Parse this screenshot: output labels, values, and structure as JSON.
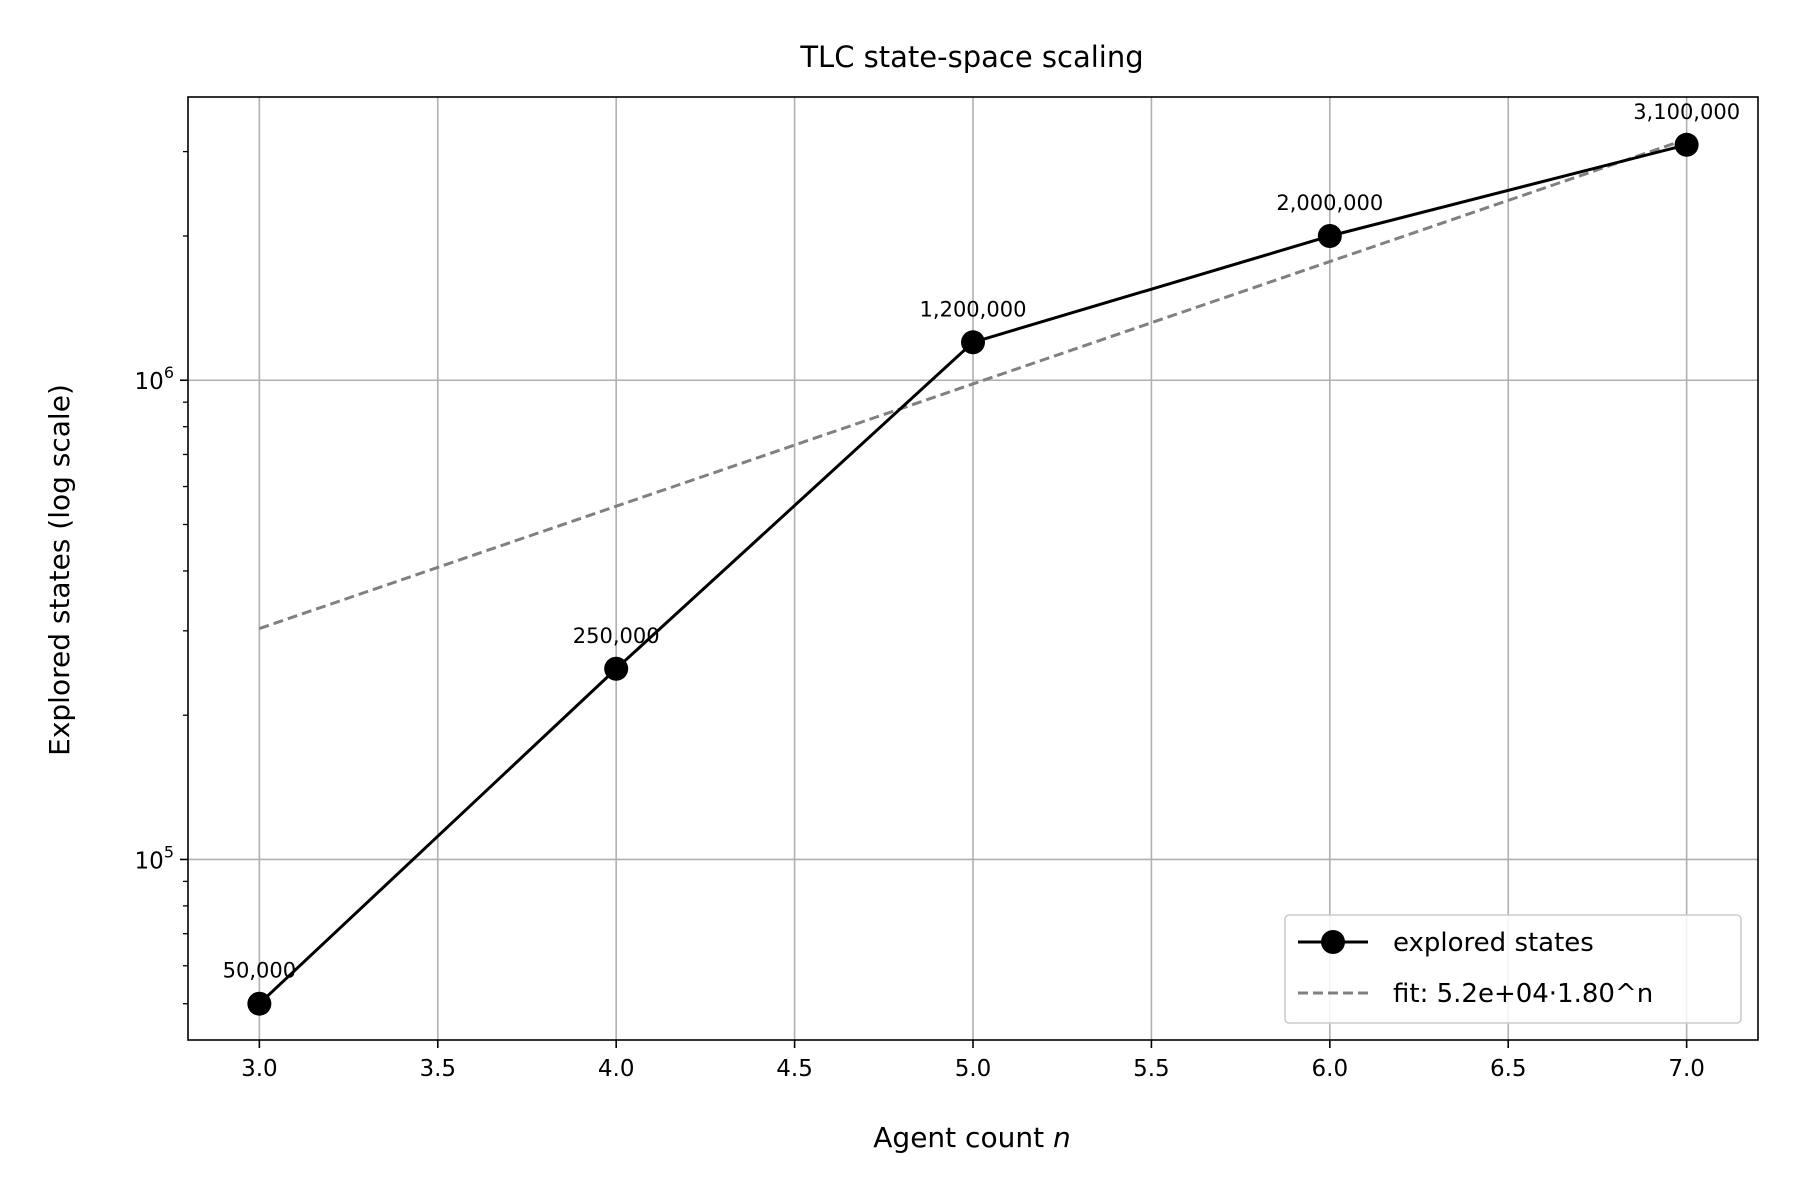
{
  "chart_data": {
    "type": "line",
    "title": "TLC state-space scaling",
    "xlabel": "Agent count",
    "xlabel_var": "n",
    "ylabel": "Explored states (log scale)",
    "x": [
      3,
      4,
      5,
      6,
      7
    ],
    "xlim": [
      2.8,
      7.2
    ],
    "x_ticks": [
      3.0,
      3.5,
      4.0,
      4.5,
      5.0,
      5.5,
      6.0,
      6.5,
      7.0
    ],
    "x_tick_labels": [
      "3.0",
      "3.5",
      "4.0",
      "4.5",
      "5.0",
      "5.5",
      "6.0",
      "6.5",
      "7.0"
    ],
    "y_scale": "log",
    "ylim": [
      42000,
      3900000
    ],
    "y_major_ticks": [
      100000,
      1000000
    ],
    "y_major_tick_labels": [
      {
        "base": "10",
        "exp": "5"
      },
      {
        "base": "10",
        "exp": "6"
      }
    ],
    "grid": true,
    "legend_position": "lower-right",
    "series": [
      {
        "name": "explored states",
        "style": "solid-line-with-circle-markers",
        "color": "#000000",
        "values": [
          50000,
          250000,
          1200000,
          2000000,
          3100000
        ],
        "data_labels": [
          "50,000",
          "250,000",
          "1,200,000",
          "2,000,000",
          "3,100,000"
        ]
      },
      {
        "name": "fit: 5.2e+04·1.80^n",
        "style": "dashed-line",
        "color": "#808080",
        "fit_a": 52000,
        "fit_b": 1.8
      }
    ]
  }
}
